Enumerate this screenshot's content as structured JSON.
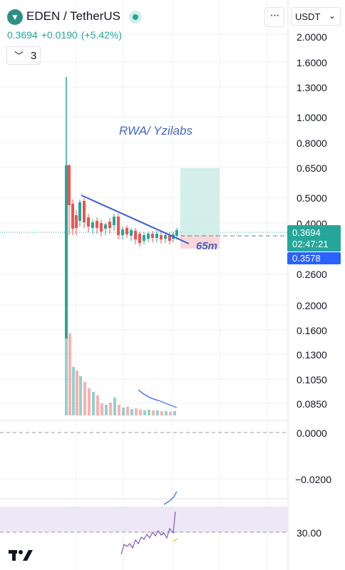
{
  "header": {
    "pair": "EDEN / TetherUS",
    "more_glyph": "···",
    "currency": "USDT",
    "collapse_count": "3"
  },
  "quote": {
    "last": "0.3694",
    "change": "+0.0190",
    "change_pct": "(+5.42%)"
  },
  "price_axis": {
    "scale": "log",
    "ticks": [
      "2.0000",
      "1.6000",
      "1.3000",
      "1.0000",
      "0.8000",
      "0.6500",
      "0.5000",
      "0.4000",
      "0.2600",
      "0.2000",
      "0.1600",
      "0.1300",
      "0.1050",
      "0.0850"
    ],
    "price_tag": {
      "value": "0.3694",
      "countdown": "02:47:21"
    },
    "target_tag": "0.3578"
  },
  "indicator_axis": {
    "ticks": [
      "0.0000",
      "−0.0200"
    ]
  },
  "rsi_axis": {
    "ticks": [
      "30.00"
    ]
  },
  "annotations": {
    "text": "RWA/ Yzilabs",
    "duration": "65m"
  },
  "colors": {
    "up": "#26a69a",
    "down": "#ef5350",
    "trendline": "#3d5fd6",
    "accent": "#2962ff",
    "rsi": "#7e57c2"
  },
  "icons": {
    "logo": "eden-logo-icon",
    "status": "market-open-dot-icon",
    "menu": "more-icon",
    "select": "chevron-down-icon",
    "brand": "tradingview-logo-icon"
  }
}
